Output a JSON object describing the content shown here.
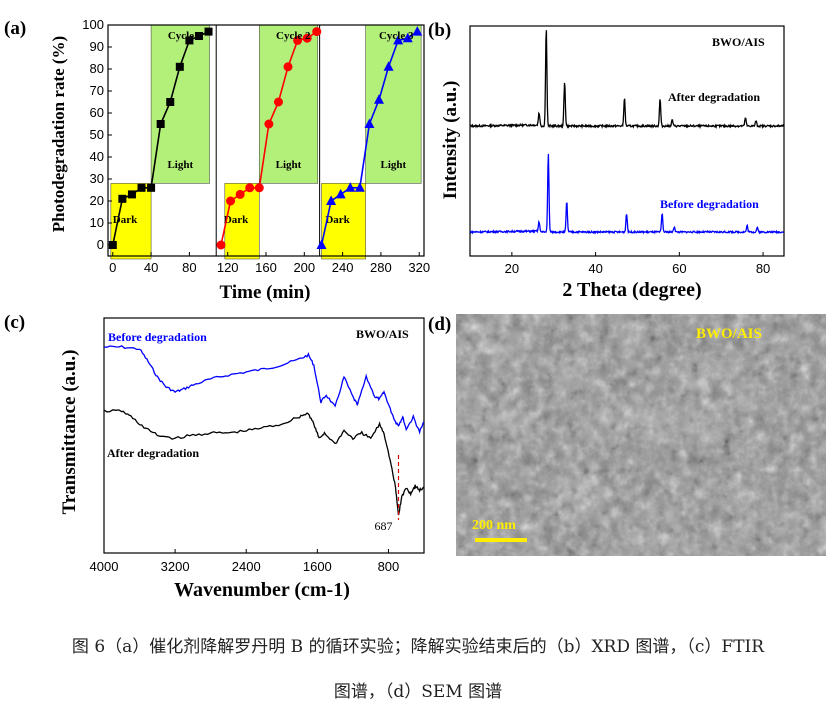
{
  "panel_labels": {
    "a": "(a)",
    "b": "(b)",
    "c": "(c)",
    "d": "(d)"
  },
  "chart_data": [
    {
      "panel": "a",
      "type": "line",
      "xlabel": "Time (min)",
      "ylabel": "Photodegradation rate (%)",
      "xticks": [
        0,
        40,
        80,
        120,
        160,
        200,
        240,
        280,
        320
      ],
      "yticks": [
        0,
        10,
        20,
        30,
        40,
        50,
        60,
        70,
        80,
        90,
        100
      ],
      "xlim": [
        -5,
        325
      ],
      "ylim": [
        -5,
        100
      ],
      "regions": [
        {
          "label": "Dark",
          "x": [
            -2,
            40
          ],
          "color": "#ffff00"
        },
        {
          "label": "Light",
          "x": [
            40,
            101
          ],
          "color": "#b3f07a"
        },
        {
          "label": "Dark",
          "x": [
            117,
            153
          ],
          "color": "#ffff00"
        },
        {
          "label": "Light",
          "x": [
            153,
            214
          ],
          "color": "#b3f07a"
        },
        {
          "label": "Dark",
          "x": [
            218,
            264
          ],
          "color": "#ffff00"
        },
        {
          "label": "Light",
          "x": [
            264,
            322
          ],
          "color": "#b3f07a"
        }
      ],
      "series": [
        {
          "name": "Cycle 1",
          "color": "#000000",
          "marker": "square",
          "x": [
            0,
            10,
            20,
            30,
            40,
            50,
            60,
            70,
            80,
            90,
            100
          ],
          "y": [
            0,
            21,
            23,
            26,
            26,
            55,
            65,
            81,
            93,
            95,
            97
          ]
        },
        {
          "name": "Cycle 2",
          "color": "#ff0000",
          "marker": "circle",
          "x": [
            113,
            123,
            133,
            143,
            153,
            163,
            173,
            183,
            193,
            203,
            213
          ],
          "y": [
            0,
            20,
            23,
            26,
            26,
            55,
            65,
            81,
            93,
            94,
            97
          ]
        },
        {
          "name": "Cycle 3",
          "color": "#0000ff",
          "marker": "triangle",
          "x": [
            218,
            228,
            238,
            248,
            258,
            268,
            278,
            288,
            298,
            308,
            318
          ],
          "y": [
            0,
            20,
            23,
            26,
            26,
            55,
            66,
            81,
            93,
            94,
            97
          ]
        }
      ],
      "region_labels": [
        "Dark",
        "Light"
      ]
    },
    {
      "panel": "b",
      "type": "line",
      "title": "BWO/AIS",
      "xlabel": "2 Theta (degree)",
      "ylabel": "Intensity (a.u.)",
      "xticks": [
        20,
        40,
        60,
        80
      ],
      "xlim": [
        10,
        85
      ],
      "series": [
        {
          "name": "After degradation",
          "color": "#000000",
          "peaks": [
            [
              26.5,
              0.12
            ],
            [
              28.2,
              0.95
            ],
            [
              32.6,
              0.42
            ],
            [
              46.9,
              0.27
            ],
            [
              55.4,
              0.26
            ],
            [
              58.3,
              0.06
            ],
            [
              75.8,
              0.08
            ],
            [
              78.3,
              0.05
            ]
          ]
        },
        {
          "name": "Before degradation",
          "color": "#0000ff",
          "peaks": [
            [
              26.5,
              0.1
            ],
            [
              28.7,
              0.85
            ],
            [
              33.1,
              0.33
            ],
            [
              47.4,
              0.2
            ],
            [
              55.9,
              0.2
            ],
            [
              58.8,
              0.06
            ],
            [
              76.2,
              0.07
            ],
            [
              78.6,
              0.05
            ]
          ]
        }
      ]
    },
    {
      "panel": "c",
      "type": "line",
      "title": "BWO/AIS",
      "xlabel": "Wavenumber  (cm-1)",
      "ylabel": "Transmittance (a.u.)",
      "xticks": [
        4000,
        3200,
        2400,
        1600,
        800
      ],
      "xlim": [
        4000,
        400
      ],
      "annotation": {
        "text": "687",
        "x": 687
      },
      "series": [
        {
          "name": "Before degradation",
          "color": "#0000ff",
          "points": [
            [
              4000,
              0.0
            ],
            [
              3800,
              0.0
            ],
            [
              3600,
              0.02
            ],
            [
              3500,
              0.15
            ],
            [
              3400,
              0.3
            ],
            [
              3300,
              0.4
            ],
            [
              3200,
              0.45
            ],
            [
              3100,
              0.42
            ],
            [
              3000,
              0.38
            ],
            [
              2800,
              0.32
            ],
            [
              2600,
              0.28
            ],
            [
              2400,
              0.25
            ],
            [
              2200,
              0.22
            ],
            [
              2000,
              0.18
            ],
            [
              1800,
              0.12
            ],
            [
              1700,
              0.08
            ],
            [
              1640,
              0.18
            ],
            [
              1560,
              0.55
            ],
            [
              1500,
              0.48
            ],
            [
              1400,
              0.6
            ],
            [
              1300,
              0.3
            ],
            [
              1200,
              0.5
            ],
            [
              1150,
              0.58
            ],
            [
              1050,
              0.3
            ],
            [
              950,
              0.5
            ],
            [
              900,
              0.52
            ],
            [
              850,
              0.45
            ],
            [
              780,
              0.62
            ],
            [
              720,
              0.75
            ],
            [
              687,
              0.78
            ],
            [
              640,
              0.7
            ],
            [
              600,
              0.82
            ],
            [
              520,
              0.7
            ],
            [
              450,
              0.85
            ],
            [
              400,
              0.75
            ]
          ]
        },
        {
          "name": "After degradation",
          "color": "#000000",
          "points": [
            [
              4000,
              0.0
            ],
            [
              3800,
              0.0
            ],
            [
              3700,
              0.05
            ],
            [
              3550,
              0.15
            ],
            [
              3400,
              0.22
            ],
            [
              3200,
              0.25
            ],
            [
              3000,
              0.22
            ],
            [
              2800,
              0.2
            ],
            [
              2600,
              0.2
            ],
            [
              2400,
              0.18
            ],
            [
              2200,
              0.15
            ],
            [
              2000,
              0.12
            ],
            [
              1800,
              0.05
            ],
            [
              1700,
              0.02
            ],
            [
              1640,
              0.12
            ],
            [
              1580,
              0.25
            ],
            [
              1520,
              0.2
            ],
            [
              1400,
              0.3
            ],
            [
              1300,
              0.18
            ],
            [
              1200,
              0.25
            ],
            [
              1100,
              0.2
            ],
            [
              1000,
              0.25
            ],
            [
              900,
              0.12
            ],
            [
              850,
              0.2
            ],
            [
              780,
              0.45
            ],
            [
              720,
              0.7
            ],
            [
              687,
              0.95
            ],
            [
              650,
              0.78
            ],
            [
              600,
              0.7
            ],
            [
              550,
              0.75
            ],
            [
              500,
              0.68
            ],
            [
              450,
              0.72
            ],
            [
              400,
              0.7
            ]
          ]
        }
      ]
    }
  ],
  "panel_d": {
    "label": "BWO/AIS",
    "scale_bar": "200 nm"
  },
  "caption": {
    "line1": "图 6（a）催化剂降解罗丹明 B 的循环实验；降解实验结束后的（b）XRD 图谱，（c）FTIR",
    "line2": "图谱，（d）SEM 图谱"
  }
}
